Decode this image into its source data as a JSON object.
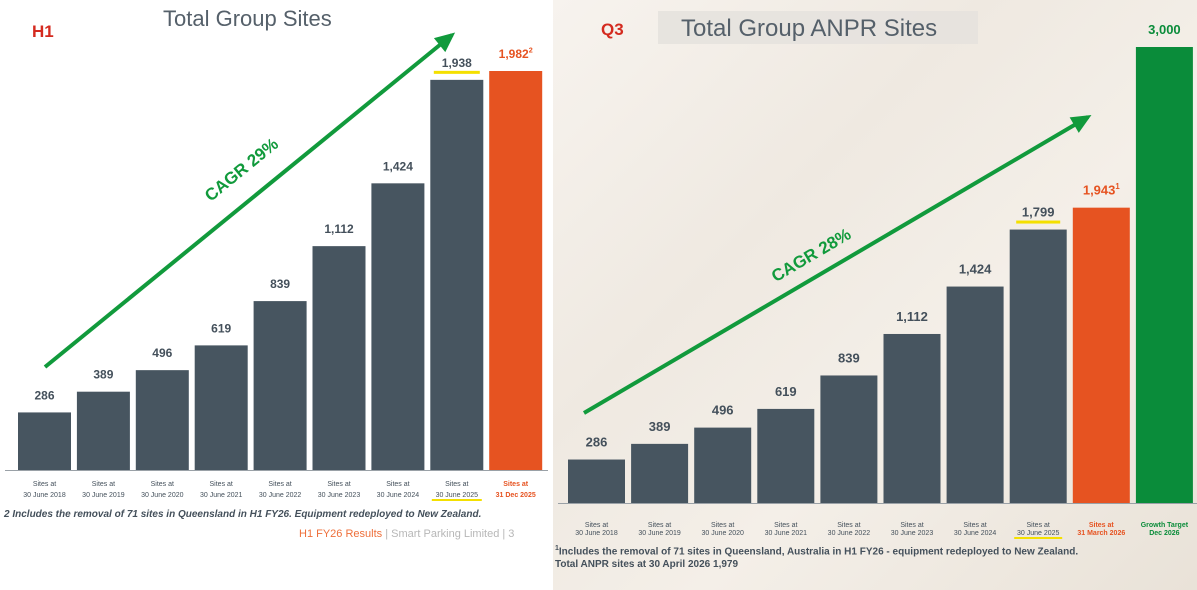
{
  "colors": {
    "bar": "#475560",
    "highlight": "#e65321",
    "target": "#0a8c3a",
    "arrow": "#119a3c",
    "underline": "#f4e000",
    "text": "#44505b",
    "tag": "#d42a1f"
  },
  "chart_data": [
    {
      "type": "bar",
      "tag": "H1",
      "title": "Total Group Sites",
      "categories": [
        [
          "Sites at",
          "30 June 2018"
        ],
        [
          "Sites at",
          "30 June 2019"
        ],
        [
          "Sites at",
          "30 June 2020"
        ],
        [
          "Sites at",
          "30 June 2021"
        ],
        [
          "Sites at",
          "30 June 2022"
        ],
        [
          "Sites at",
          "30 June 2023"
        ],
        [
          "Sites at",
          "30 June 2024"
        ],
        [
          "Sites at",
          "30 June 2025"
        ],
        [
          "Sites at",
          "31 Dec 2025"
        ]
      ],
      "values": [
        286,
        389,
        496,
        619,
        839,
        1112,
        1424,
        1938,
        1982
      ],
      "value_labels": [
        "286",
        "389",
        "496",
        "619",
        "839",
        "1,112",
        "1,424",
        "1,938",
        "1,982"
      ],
      "superscripts": [
        "",
        "",
        "",
        "",
        "",
        "",
        "",
        "",
        "2"
      ],
      "bar_colors": [
        "bar",
        "bar",
        "bar",
        "bar",
        "bar",
        "bar",
        "bar",
        "bar",
        "highlight"
      ],
      "underlined_index": 7,
      "annotation": "CAGR 29%",
      "footnote": "2 Includes the removal of 71 sites in Queensland in H1 FY26. Equipment redeployed to New Zealand.",
      "footer": {
        "brand": "H1 FY26 Results",
        "rest": " | Smart Parking Limited | 3"
      }
    },
    {
      "type": "bar",
      "tag": "Q3",
      "title": "Total Group ANPR Sites",
      "categories": [
        [
          "Sites at",
          "30 June 2018"
        ],
        [
          "Sites at",
          "30 June 2019"
        ],
        [
          "Sites at",
          "30 June 2020"
        ],
        [
          "Sites at",
          "30 June 2021"
        ],
        [
          "Sites at",
          "30 June 2022"
        ],
        [
          "Sites at",
          "30 June 2023"
        ],
        [
          "Sites at",
          "30 June 2024"
        ],
        [
          "Sites at",
          "30 June 2025"
        ],
        [
          "Sites at",
          "31 March 2026"
        ],
        [
          "Growth Target",
          "Dec 2026"
        ]
      ],
      "values": [
        286,
        389,
        496,
        619,
        839,
        1112,
        1424,
        1799,
        1943,
        3000
      ],
      "value_labels": [
        "286",
        "389",
        "496",
        "619",
        "839",
        "1,112",
        "1,424",
        "1,799",
        "1,943",
        "3,000"
      ],
      "superscripts": [
        "",
        "",
        "",
        "",
        "",
        "",
        "",
        "",
        "1",
        ""
      ],
      "bar_colors": [
        "bar",
        "bar",
        "bar",
        "bar",
        "bar",
        "bar",
        "bar",
        "bar",
        "highlight",
        "target"
      ],
      "underlined_index": 7,
      "annotation": "CAGR 28%",
      "footnote_lines": [
        "1Includes the removal of 71 sites in Queensland, Australia in H1 FY26 - equipment redeployed to New Zealand.",
        "Total ANPR sites at 30 April 2026 1,979"
      ]
    }
  ]
}
